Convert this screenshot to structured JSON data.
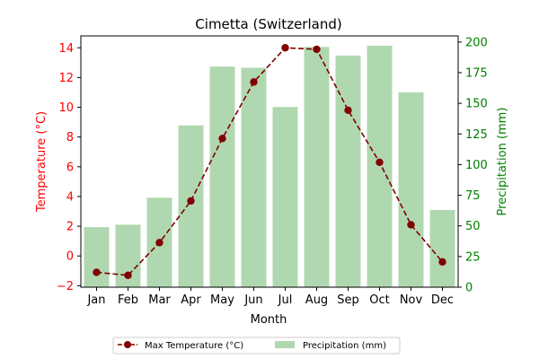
{
  "chart_data": {
    "type": "bar+line",
    "title": "Cimetta (Switzerland)",
    "xlabel": "Month",
    "categories": [
      "Jan",
      "Feb",
      "Mar",
      "Apr",
      "May",
      "Jun",
      "Jul",
      "Aug",
      "Sep",
      "Oct",
      "Nov",
      "Dec"
    ],
    "y_left": {
      "label": "Temperature (°C)",
      "color": "#ff0000",
      "ylim": [
        -2.1,
        14.8
      ],
      "ticks": [
        -2,
        0,
        2,
        4,
        6,
        8,
        10,
        12,
        14
      ]
    },
    "y_right": {
      "label": "Precipitation (mm)",
      "color": "#008000",
      "ylim": [
        0,
        205
      ],
      "ticks": [
        0,
        25,
        50,
        75,
        100,
        125,
        150,
        175,
        200
      ]
    },
    "series": [
      {
        "name": "Max Temperature (°C)",
        "type": "line",
        "axis": "left",
        "color": "#800000",
        "style": "dashed with circle markers",
        "values": [
          -1.1,
          -1.3,
          0.9,
          3.7,
          7.9,
          11.7,
          14.0,
          13.9,
          9.8,
          6.3,
          2.1,
          -0.4
        ]
      },
      {
        "name": "Precipitation (mm)",
        "type": "bar",
        "axis": "right",
        "color": "#b0d8b0",
        "values": [
          49,
          51,
          73,
          132,
          180,
          179,
          147,
          196,
          189,
          197,
          159,
          63
        ]
      }
    ],
    "legend": "bottom-center, outside plot, two columns",
    "grid": false
  }
}
